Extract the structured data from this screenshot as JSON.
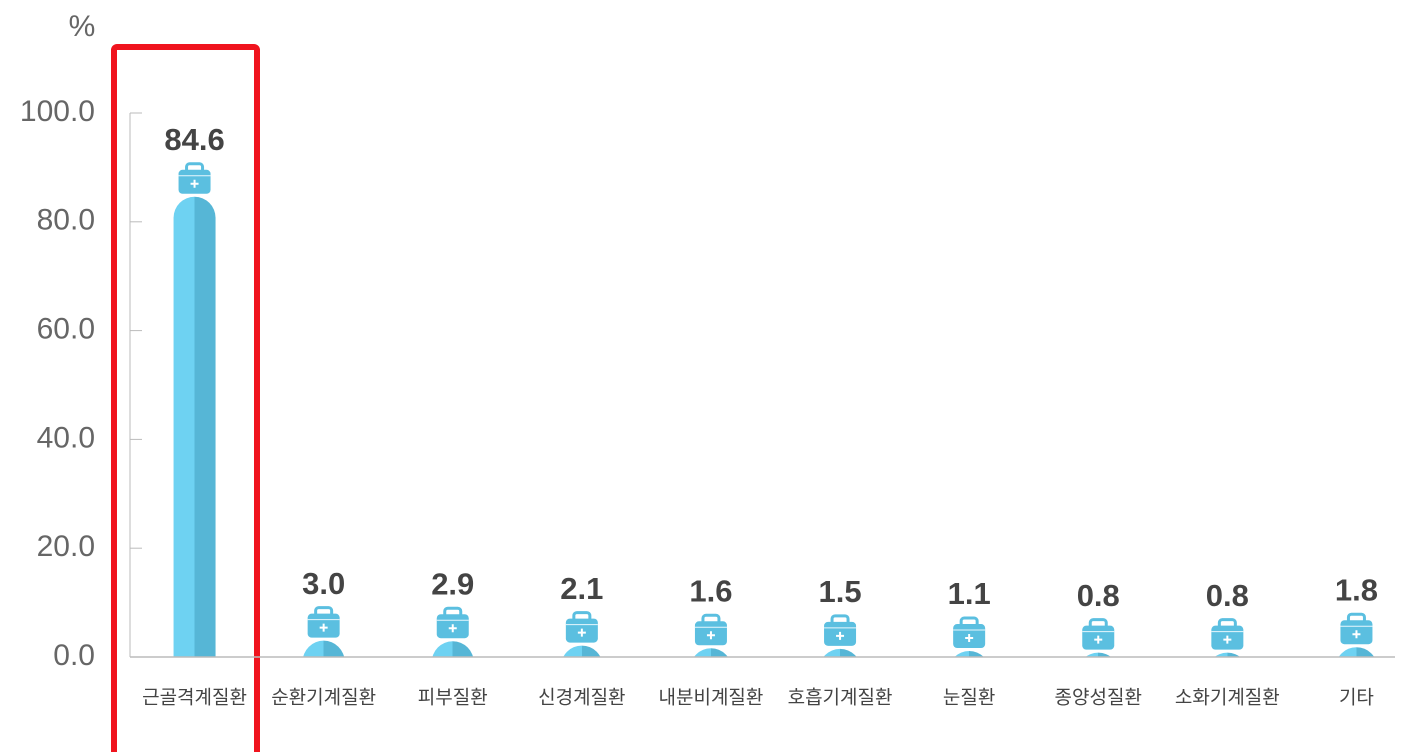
{
  "chart_data": {
    "type": "bar",
    "y_label": "%",
    "categories": [
      "근골격계질환",
      "순환기계질환",
      "피부질환",
      "신경계질환",
      "내분비계질환",
      "호흡기계질환",
      "눈질환",
      "종양성질환",
      "소화기계질환",
      "기타"
    ],
    "values": [
      84.6,
      3.0,
      2.9,
      2.1,
      1.6,
      1.5,
      1.1,
      0.8,
      0.8,
      1.8
    ],
    "value_labels": [
      "84.6",
      "3.0",
      "2.9",
      "2.1",
      "1.6",
      "1.5",
      "1.1",
      "0.8",
      "0.8",
      "1.8"
    ],
    "color": "#66cbed",
    "ylim": [
      0,
      100
    ],
    "yticks": [
      {
        "value": 0,
        "label": "0.0"
      },
      {
        "value": 20,
        "label": "20.0"
      },
      {
        "value": 40,
        "label": "40.0"
      },
      {
        "value": 60,
        "label": "60.0"
      },
      {
        "value": 80,
        "label": "80.0"
      },
      {
        "value": 100,
        "label": "100.0"
      }
    ]
  }
}
